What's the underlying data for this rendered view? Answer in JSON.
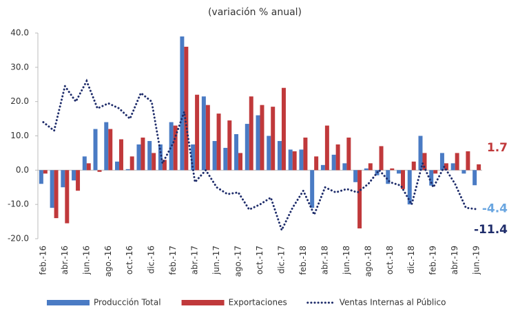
{
  "chart_data": {
    "type": "bar-line",
    "title": "(variación % anual)",
    "categories": [
      "feb.-16",
      null,
      "abr.-16",
      null,
      "jun.-16",
      null,
      "ago.-16",
      null,
      "oct.-16",
      null,
      "dic.-16",
      null,
      "feb.-17",
      null,
      "abr.-17",
      null,
      "jun.-17",
      null,
      "ago.-17",
      null,
      "oct.-17",
      null,
      "dic.-17",
      null,
      "feb.-18",
      null,
      "abr.-18",
      null,
      "jun.-18",
      null,
      "ago.-18",
      null,
      "oct.-18",
      null,
      "dic.-18",
      null,
      "feb.-19",
      null,
      "abr.-19",
      null,
      "jun.-19"
    ],
    "series": [
      {
        "name": "Producción Total",
        "type": "bar",
        "color": "#4a7bc4",
        "values": [
          -4,
          -11,
          -5,
          -3,
          4,
          12,
          14,
          2.5,
          0.3,
          7.5,
          8.5,
          7.5,
          14,
          39,
          7.5,
          21.5,
          8.5,
          6.5,
          10.5,
          13.5,
          16,
          10,
          8.5,
          6,
          6,
          -11,
          1.5,
          4.5,
          2,
          -3.5,
          0.5,
          -1.5,
          -4,
          -1,
          -10,
          10,
          -4.5,
          5,
          2,
          -1,
          -4.4
        ]
      },
      {
        "name": "Exportaciones",
        "type": "bar",
        "color": "#c0393b",
        "values": [
          -1,
          -14,
          -15.5,
          -6,
          2,
          -0.5,
          12,
          9,
          4,
          9.5,
          5,
          3,
          13,
          36,
          22,
          19,
          16.5,
          14.5,
          5,
          21.5,
          19,
          18.5,
          24,
          5.5,
          9.5,
          4,
          13,
          7.5,
          9.5,
          -17,
          2,
          7,
          0.5,
          -5.5,
          2.5,
          5,
          -1,
          2,
          5,
          5.5,
          1.7
        ]
      },
      {
        "name": "Ventas Internas al Público",
        "type": "line",
        "color": "#1f2d6b",
        "values": [
          14,
          11.5,
          24.5,
          20,
          26,
          18,
          19.5,
          18,
          15,
          22.5,
          20,
          2,
          8,
          17,
          -3.5,
          0,
          -5,
          -7,
          -6.5,
          -11.5,
          -10,
          -8,
          -17.5,
          -11,
          -6,
          -13,
          -5,
          -6.5,
          -5.5,
          -6.5,
          -4,
          0,
          -3.5,
          -4.5,
          -10,
          2,
          -5,
          1,
          -4,
          -11,
          -11.4
        ]
      }
    ],
    "ylim": [
      -20,
      40
    ],
    "yticks": [
      {
        "value": -20,
        "label": "-20.0"
      },
      {
        "value": -10,
        "label": "-10.0"
      },
      {
        "value": 0,
        "label": "0.0"
      },
      {
        "value": 10,
        "label": "10.0"
      },
      {
        "value": 20,
        "label": "20.0"
      },
      {
        "value": 30,
        "label": "30.0"
      },
      {
        "value": 40,
        "label": "40.0"
      }
    ],
    "grid": false,
    "legend": "bottom"
  }
}
